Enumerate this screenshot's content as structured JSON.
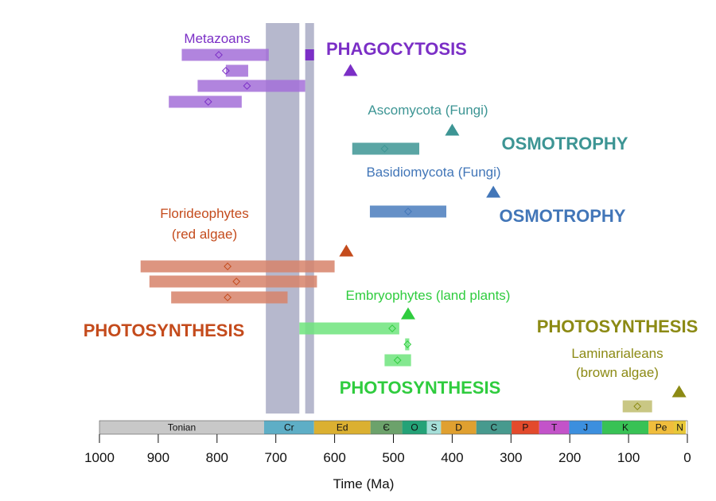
{
  "chart_data": {
    "type": "timeline",
    "xlabel": "Time (Ma)",
    "xlim": [
      1000,
      0
    ],
    "xticks": [
      1000,
      900,
      800,
      700,
      600,
      500,
      400,
      300,
      200,
      100,
      0
    ],
    "shaded_intervals": [
      [
        717,
        660
      ],
      [
        650,
        635
      ]
    ],
    "periods": [
      {
        "label": "Tonian",
        "start": 1000,
        "end": 720,
        "color": "#c8c8c8"
      },
      {
        "label": "Cr",
        "start": 720,
        "end": 635,
        "color": "#5eaec6"
      },
      {
        "label": "Ed",
        "start": 635,
        "end": 539,
        "color": "#dbb031"
      },
      {
        "label": "Є",
        "start": 539,
        "end": 485,
        "color": "#6ca26b"
      },
      {
        "label": "O",
        "start": 485,
        "end": 443,
        "color": "#24a277"
      },
      {
        "label": "S",
        "start": 443,
        "end": 419,
        "color": "#a6dfd9"
      },
      {
        "label": "D",
        "start": 419,
        "end": 359,
        "color": "#e0a030"
      },
      {
        "label": "C",
        "start": 359,
        "end": 299,
        "color": "#479a8e"
      },
      {
        "label": "P",
        "start": 299,
        "end": 252,
        "color": "#e34a2c"
      },
      {
        "label": "T",
        "start": 252,
        "end": 201,
        "color": "#c353c9"
      },
      {
        "label": "J",
        "start": 201,
        "end": 145,
        "color": "#3c8fde"
      },
      {
        "label": "K",
        "start": 145,
        "end": 66,
        "color": "#38c255"
      },
      {
        "label": "Pe",
        "start": 66,
        "end": 23,
        "color": "#f0bd3c"
      },
      {
        "label": "N",
        "start": 23,
        "end": 2.6,
        "color": "#e8c838"
      }
    ],
    "groups": [
      {
        "name": "Metazoans",
        "label_lines": [
          "Metazoans"
        ],
        "mode": "PHAGOCYTOSIS",
        "color": "#7b2fc6",
        "bar_color": "#a36fd8",
        "fossil": 573,
        "solid_marker": [
          650,
          635
        ],
        "bars": [
          {
            "start": 860,
            "end": 712,
            "estimate": 797
          },
          {
            "start": 785,
            "end": 747,
            "estimate": 785
          },
          {
            "start": 833,
            "end": 650,
            "estimate": 749
          },
          {
            "start": 882,
            "end": 758,
            "estimate": 815
          }
        ]
      },
      {
        "name": "Ascomycota (Fungi)",
        "label_lines": [
          "Ascomycota (Fungi)"
        ],
        "mode": "OSMOTROPHY",
        "color": "#3d9594",
        "bar_color": "#3d9594",
        "fossil": 400,
        "bars": [
          {
            "start": 570,
            "end": 456,
            "estimate": 515
          }
        ]
      },
      {
        "name": "Basidiomycota (Fungi)",
        "label_lines": [
          "Basidiomycota (Fungi)"
        ],
        "mode": "OSMOTROPHY",
        "color": "#4276b8",
        "bar_color": "#4a7dbd",
        "fossil": 330,
        "bars": [
          {
            "start": 540,
            "end": 410,
            "estimate": 475
          }
        ]
      },
      {
        "name": "Florideophytes (red algae)",
        "label_lines": [
          "Florideophytes",
          "(red algae)"
        ],
        "mode": "PHOTOSYNTHESIS",
        "color": "#c44b1c",
        "bar_color": "#d7826a",
        "fossil": 580,
        "bars": [
          {
            "start": 930,
            "end": 600,
            "estimate": 782
          },
          {
            "start": 915,
            "end": 630,
            "estimate": 767
          },
          {
            "start": 878,
            "end": 680,
            "estimate": 782
          }
        ]
      },
      {
        "name": "Embryophytes (land plants)",
        "label_lines": [
          "Embryophytes (land plants)"
        ],
        "mode": "PHOTOSYNTHESIS",
        "color": "#2fcc3e",
        "bar_color": "#6fe47d",
        "fossil": 475,
        "bars": [
          {
            "start": 660,
            "end": 490,
            "estimate": 502
          },
          {
            "start": 480,
            "end": 473,
            "estimate": 476
          },
          {
            "start": 515,
            "end": 470,
            "estimate": 493
          }
        ]
      },
      {
        "name": "Laminarialeans (brown algae)",
        "label_lines": [
          "Laminarialeans",
          "(brown algae)"
        ],
        "mode": "PHOTOSYNTHESIS",
        "color": "#8c8a14",
        "bar_color": "#bfbd6e",
        "fossil": 14,
        "bars": [
          {
            "start": 110,
            "end": 60,
            "estimate": 85
          }
        ]
      }
    ]
  }
}
